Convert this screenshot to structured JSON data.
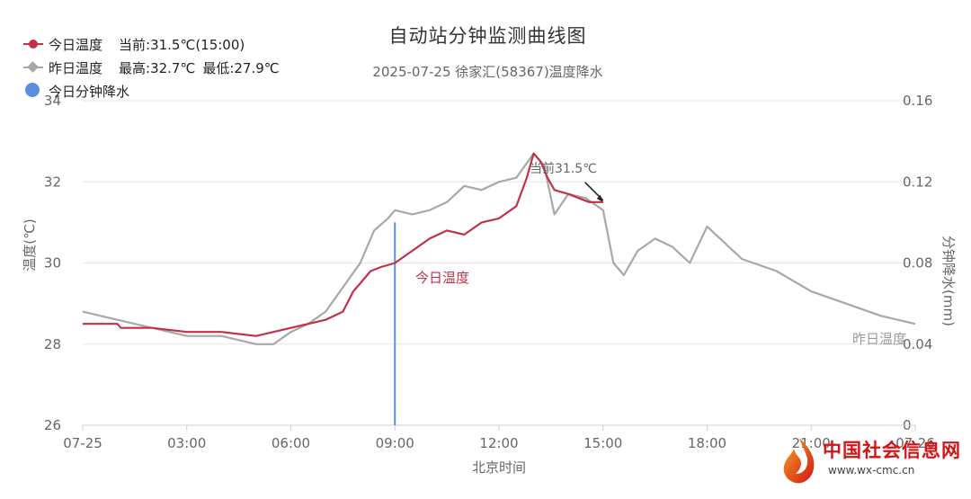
{
  "legend": {
    "today": {
      "name": "今日温度",
      "info": "当前:31.5℃(15:00)",
      "color": "#c0324a",
      "icon": "circle-line-marker"
    },
    "yesterday": {
      "name": "昨日温度",
      "info_max": "最高:32.7℃",
      "info_min": "最低:27.9℃",
      "color": "#a8a8a8",
      "icon": "diamond-line-marker"
    },
    "precip": {
      "name": "今日分钟降水",
      "color": "#5b8ee0",
      "icon": "blue-dot"
    }
  },
  "watermark": {
    "name": "中国社会信息网",
    "url": "www.wx-cmc.cn"
  },
  "chart_data": {
    "type": "line",
    "title": "自动站分钟监测曲线图",
    "subtitle": "2025-07-25 徐家汇(58367)温度降水",
    "xlabel": "北京时间",
    "ylabel": "温度(℃)",
    "y2label": "分钟降水(mm)",
    "x_unit": "hours since 2025-07-25 00:00",
    "xlim": [
      0,
      24
    ],
    "ylim": [
      26,
      34
    ],
    "y2lim": [
      0,
      0.16
    ],
    "x_ticks": [
      {
        "value": 0,
        "label": "07-25"
      },
      {
        "value": 3,
        "label": "03:00"
      },
      {
        "value": 6,
        "label": "06:00"
      },
      {
        "value": 9,
        "label": "09:00"
      },
      {
        "value": 12,
        "label": "12:00"
      },
      {
        "value": 15,
        "label": "15:00"
      },
      {
        "value": 18,
        "label": "18:00"
      },
      {
        "value": 21,
        "label": "21:00"
      },
      {
        "value": 24,
        "label": "07-26"
      }
    ],
    "y_ticks": [
      "26",
      "28",
      "30",
      "32",
      "34"
    ],
    "y2_ticks": [
      "0",
      "0.04",
      "0.08",
      "0.12",
      "0.16"
    ],
    "grid": true,
    "legend_position": "top-left",
    "series": [
      {
        "name": "今日温度",
        "axis": "left",
        "color": "#c0324a",
        "label": "今日温度",
        "points": [
          [
            0,
            28.5
          ],
          [
            1,
            28.5
          ],
          [
            1.1,
            28.4
          ],
          [
            2,
            28.4
          ],
          [
            3,
            28.3
          ],
          [
            4,
            28.3
          ],
          [
            5,
            28.2
          ],
          [
            5.5,
            28.3
          ],
          [
            6,
            28.4
          ],
          [
            6.5,
            28.5
          ],
          [
            7,
            28.6
          ],
          [
            7.5,
            28.8
          ],
          [
            7.8,
            29.3
          ],
          [
            8,
            29.5
          ],
          [
            8.3,
            29.8
          ],
          [
            8.6,
            29.9
          ],
          [
            9,
            30.0
          ],
          [
            9.5,
            30.3
          ],
          [
            10,
            30.6
          ],
          [
            10.5,
            30.8
          ],
          [
            11,
            30.7
          ],
          [
            11.5,
            31.0
          ],
          [
            12,
            31.1
          ],
          [
            12.5,
            31.4
          ],
          [
            12.8,
            32.1
          ],
          [
            13,
            32.7
          ],
          [
            13.2,
            32.5
          ],
          [
            13.4,
            32.1
          ],
          [
            13.6,
            31.8
          ],
          [
            14,
            31.7
          ],
          [
            14.3,
            31.6
          ],
          [
            14.6,
            31.5
          ],
          [
            15,
            31.5
          ]
        ],
        "current_label": "当前31.5℃"
      },
      {
        "name": "昨日温度",
        "axis": "left",
        "color": "#a8a8a8",
        "label": "昨日温度",
        "points": [
          [
            0,
            28.8
          ],
          [
            1,
            28.6
          ],
          [
            2,
            28.4
          ],
          [
            2.5,
            28.3
          ],
          [
            3,
            28.2
          ],
          [
            4,
            28.2
          ],
          [
            5,
            28.0
          ],
          [
            5.5,
            28.0
          ],
          [
            6,
            28.3
          ],
          [
            6.5,
            28.5
          ],
          [
            7,
            28.8
          ],
          [
            7.5,
            29.4
          ],
          [
            8,
            30.0
          ],
          [
            8.4,
            30.8
          ],
          [
            8.8,
            31.1
          ],
          [
            9,
            31.3
          ],
          [
            9.5,
            31.2
          ],
          [
            10,
            31.3
          ],
          [
            10.5,
            31.5
          ],
          [
            11,
            31.9
          ],
          [
            11.5,
            31.8
          ],
          [
            12,
            32.0
          ],
          [
            12.5,
            32.1
          ],
          [
            13,
            32.7
          ],
          [
            13.3,
            32.4
          ],
          [
            13.6,
            31.2
          ],
          [
            14,
            31.7
          ],
          [
            14.5,
            31.6
          ],
          [
            15,
            31.3
          ],
          [
            15.3,
            30.0
          ],
          [
            15.6,
            29.7
          ],
          [
            16,
            30.3
          ],
          [
            16.5,
            30.6
          ],
          [
            17,
            30.4
          ],
          [
            17.5,
            30.0
          ],
          [
            18,
            30.9
          ],
          [
            18.5,
            30.5
          ],
          [
            19,
            30.1
          ],
          [
            20,
            29.8
          ],
          [
            21,
            29.3
          ],
          [
            22,
            29.0
          ],
          [
            23,
            28.7
          ],
          [
            24,
            28.5
          ]
        ]
      }
    ],
    "precipitation": {
      "name": "今日分钟降水",
      "axis": "right",
      "color": "#5b8ee0",
      "bars": [
        {
          "x": 9,
          "value": 0.1
        }
      ]
    }
  }
}
